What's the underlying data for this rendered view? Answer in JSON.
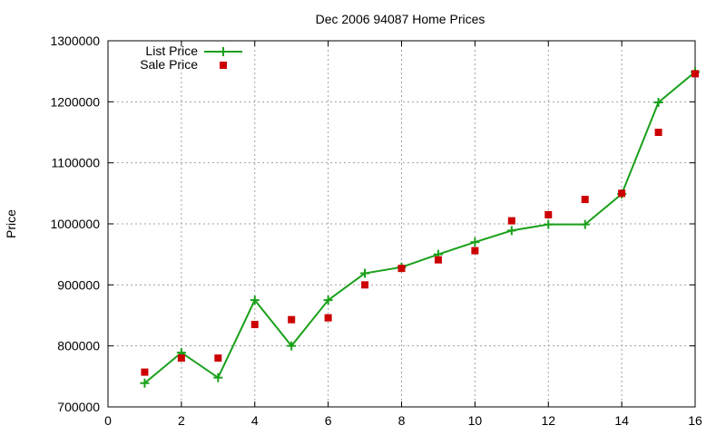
{
  "chart_data": {
    "type": "line",
    "title": "Dec 2006 94087 Home Prices",
    "xlabel": "",
    "ylabel": "Price",
    "xlim": [
      0,
      16
    ],
    "ylim": [
      700000,
      1300000
    ],
    "xticks": [
      0,
      2,
      4,
      6,
      8,
      10,
      12,
      14,
      16
    ],
    "yticks": [
      700000,
      800000,
      900000,
      1000000,
      1100000,
      1200000,
      1300000
    ],
    "grid": true,
    "legend_position": "top-left",
    "series": [
      {
        "name": "List Price",
        "style": "line-plus",
        "color": "#1aa01a",
        "x": [
          1,
          2,
          3,
          4,
          5,
          6,
          7,
          8,
          9,
          10,
          11,
          12,
          13,
          14,
          15,
          16
        ],
        "y": [
          739000,
          789000,
          748000,
          875000,
          800000,
          875000,
          919000,
          929000,
          950000,
          970000,
          989000,
          999000,
          999000,
          1049000,
          1199000,
          1249000
        ]
      },
      {
        "name": "Sale Price",
        "style": "square-markers",
        "color": "#cc0000",
        "x": [
          1,
          2,
          3,
          4,
          5,
          6,
          7,
          8,
          9,
          10,
          11,
          12,
          13,
          14,
          15,
          16
        ],
        "y": [
          757000,
          780000,
          780000,
          835000,
          843000,
          846000,
          900000,
          927000,
          941000,
          956000,
          1005000,
          1015000,
          1040000,
          1050000,
          1150000,
          1246000
        ]
      }
    ]
  }
}
